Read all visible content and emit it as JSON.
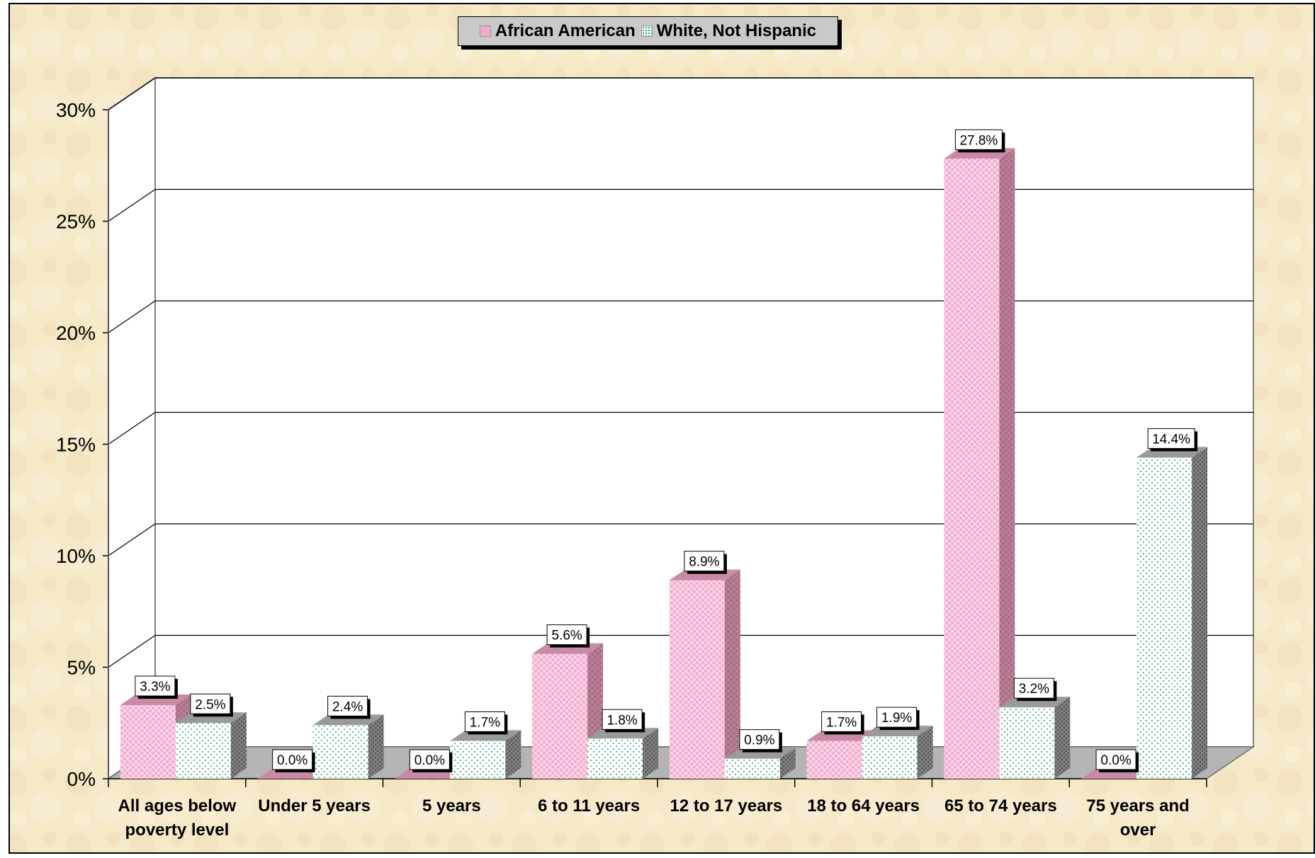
{
  "chart_data": {
    "type": "bar",
    "categories": [
      "All ages below poverty level",
      "Under 5 years",
      "5 years",
      "6 to 11 years",
      "12 to 17 years",
      "18 to 64 years",
      "65 to 74 years",
      "75 years and over"
    ],
    "category_lines": [
      [
        "All ages below",
        "poverty level"
      ],
      [
        "Under 5 years"
      ],
      [
        "5 years"
      ],
      [
        "6 to 11 years"
      ],
      [
        "12 to 17 years"
      ],
      [
        "18 to 64 years"
      ],
      [
        "65 to 74 years"
      ],
      [
        "75 years and",
        "over"
      ]
    ],
    "series": [
      {
        "name": "African American",
        "values": [
          3.3,
          0.0,
          0.0,
          5.6,
          8.9,
          1.7,
          27.8,
          0.0
        ],
        "labels": [
          "3.3%",
          "0.0%",
          "0.0%",
          "5.6%",
          "8.9%",
          "1.7%",
          "27.8%",
          "0.0%"
        ],
        "color": "#f3aacd"
      },
      {
        "name": "White, Not Hispanic",
        "values": [
          2.5,
          2.4,
          1.7,
          1.8,
          0.9,
          1.9,
          3.2,
          14.4
        ],
        "labels": [
          "2.5%",
          "2.4%",
          "1.7%",
          "1.8%",
          "0.9%",
          "1.9%",
          "3.2%",
          "14.4%"
        ],
        "color": "#29a36a"
      }
    ],
    "y_ticks": [
      "0%",
      "5%",
      "10%",
      "15%",
      "20%",
      "25%",
      "30%"
    ],
    "ylim": [
      0,
      30
    ],
    "grid": true,
    "legend_position": "top-center",
    "style": "3d-clustered-column"
  },
  "colors": {
    "background": "#f6e9c8",
    "floor": "#b4b4b4",
    "aa_front": "#f3aacd",
    "aa_side": "#a96d88",
    "white_dot": "#29a36a",
    "white_side": "#7d7d7d"
  }
}
